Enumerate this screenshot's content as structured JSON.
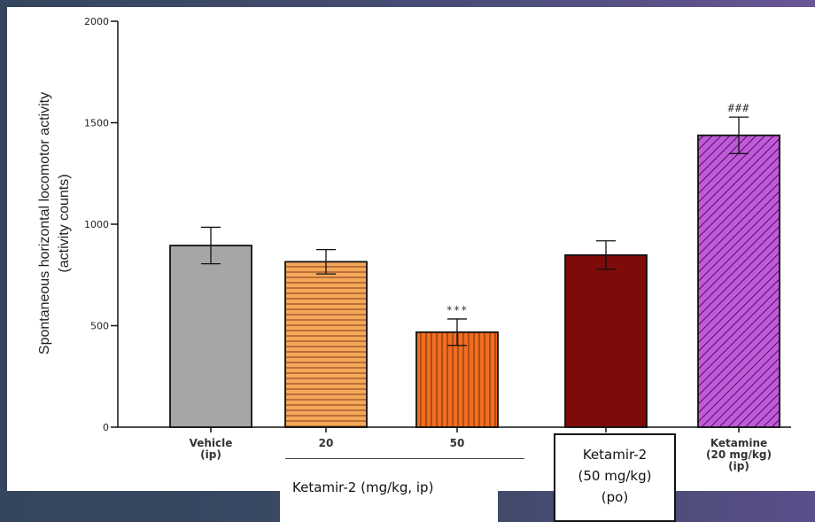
{
  "chart_data": {
    "type": "bar",
    "ylabel_lines": [
      "Spontaneous horizontal locomotor activity",
      "(activity counts)"
    ],
    "ylim": [
      0,
      2000
    ],
    "yticks": [
      0,
      500,
      1000,
      1500,
      2000
    ],
    "categories": [
      {
        "lines": [
          "Vehicle",
          "(ip)"
        ]
      },
      {
        "lines": [
          "20"
        ]
      },
      {
        "lines": [
          "50"
        ]
      },
      {
        "lines": []
      },
      {
        "lines": [
          "Ketamine",
          "(20 mg/kg)",
          "(ip)"
        ]
      }
    ],
    "values": [
      895,
      815,
      468,
      848,
      1438
    ],
    "errors": [
      90,
      60,
      65,
      70,
      90
    ],
    "annotations": [
      "",
      "",
      "***",
      "",
      "###"
    ],
    "colors": [
      "#a6a6a6",
      "#f6a75b",
      "#f26d1f",
      "#7e0a0a",
      "#c05ad9"
    ],
    "patterns": [
      "solid",
      "horizontal",
      "vertical",
      "solid",
      "diagonal"
    ]
  },
  "group_labels": {
    "ketamir_ip": "Ketamir-2 (mg/kg, ip)",
    "ketamir_po_lines": [
      "Ketamir-2",
      "(50 mg/kg)",
      "(po)"
    ]
  }
}
